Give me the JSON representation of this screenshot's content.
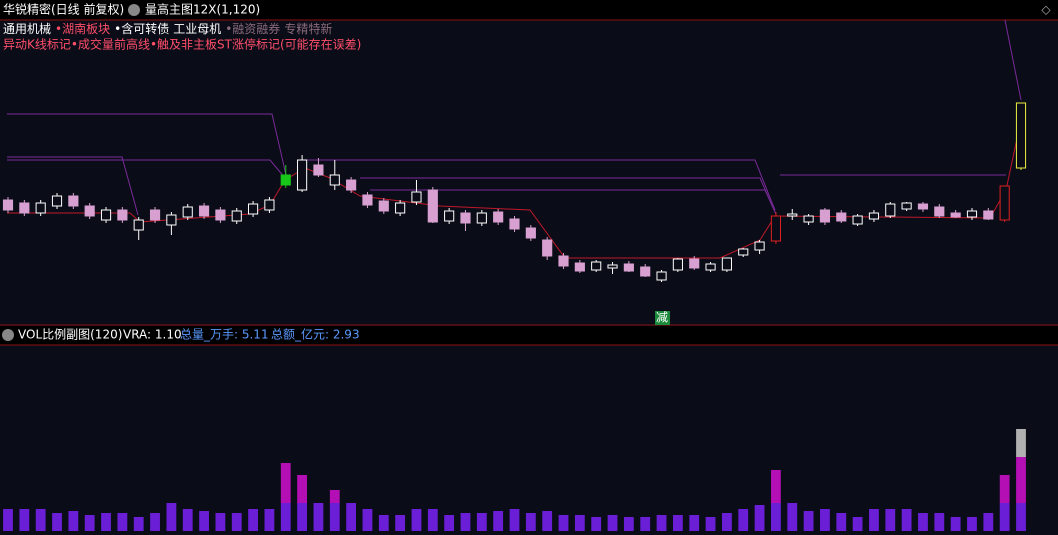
{
  "header": {
    "title": "华锐精密(日线 前复权)",
    "indicator": "量高主图12X(1,120)"
  },
  "legend_line": [
    {
      "text": "通用机械",
      "color": "#ffffff"
    },
    {
      "text": "•湖南板块",
      "color": "#ff4d6a"
    },
    {
      "text": "•含可转债",
      "color": "#ffffff"
    },
    {
      "text": "工业母机",
      "color": "#ffffff"
    },
    {
      "text": "•融资融券",
      "color": "#8a6a7a"
    },
    {
      "text": "专精特新",
      "color": "#8a6a7a"
    }
  ],
  "notes_line": "异动K线标记•成交量前高线•触及非主板ST涨停标记(可能存在误差)",
  "marker": "减",
  "volume_header": {
    "title": "VOL比例副图(120)",
    "vra": "VRA: 1.10",
    "total_volume": "总量_万手: 5.11",
    "total_amount": "总额_亿元: 2.93"
  },
  "chart_data": [
    {
      "type": "candlestick",
      "ylim": [
        10,
        300
      ],
      "up_color": "#ffffff",
      "down_color": "#d8a0d0",
      "candle_colors": [
        null,
        null,
        null,
        null,
        null,
        null,
        null,
        null,
        null,
        null,
        null,
        null,
        null,
        null,
        null,
        null,
        null,
        "#18c818",
        null,
        null,
        null,
        null,
        null,
        null,
        null,
        null,
        null,
        null,
        null,
        null,
        null,
        null,
        null,
        null,
        null,
        null,
        null,
        null,
        null,
        null,
        null,
        null,
        null,
        null,
        null,
        null,
        null,
        "#e02020",
        null,
        null,
        null,
        null,
        null,
        null,
        null,
        null,
        null,
        null,
        null,
        null,
        null,
        "#e02020",
        "#f0f040"
      ],
      "ohlc": [
        [
          120,
          123,
          107,
          110
        ],
        [
          117,
          120,
          104,
          107
        ],
        [
          107,
          120,
          104,
          117
        ],
        [
          114,
          127,
          111,
          124
        ],
        [
          124,
          127,
          111,
          114
        ],
        [
          114,
          117,
          101,
          104
        ],
        [
          100,
          113,
          97,
          110
        ],
        [
          110,
          113,
          97,
          100
        ],
        [
          90,
          103,
          80,
          100
        ],
        [
          110,
          113,
          97,
          100
        ],
        [
          95,
          108,
          85,
          105
        ],
        [
          103,
          116,
          100,
          113
        ],
        [
          114,
          117,
          101,
          104
        ],
        [
          110,
          113,
          97,
          100
        ],
        [
          99,
          112,
          96,
          109
        ],
        [
          106,
          119,
          103,
          116
        ],
        [
          110,
          123,
          107,
          120
        ],
        [
          135,
          155,
          132,
          145
        ],
        [
          130,
          165,
          128,
          160
        ],
        [
          155,
          162,
          143,
          145
        ],
        [
          135,
          160,
          130,
          145
        ],
        [
          140,
          143,
          127,
          130
        ],
        [
          125,
          128,
          112,
          115
        ],
        [
          119,
          122,
          106,
          109
        ],
        [
          107,
          120,
          104,
          117
        ],
        [
          118,
          140,
          115,
          128
        ],
        [
          130,
          133,
          97,
          98
        ],
        [
          99,
          112,
          96,
          109
        ],
        [
          107,
          110,
          89,
          97
        ],
        [
          97,
          110,
          94,
          107
        ],
        [
          108,
          111,
          95,
          98
        ],
        [
          101,
          104,
          88,
          91
        ],
        [
          92,
          95,
          79,
          82
        ],
        [
          80,
          83,
          60,
          64
        ],
        [
          64,
          67,
          51,
          54
        ],
        [
          57,
          60,
          47,
          49
        ],
        [
          50,
          60,
          48,
          58
        ],
        [
          52,
          58,
          46,
          55
        ],
        [
          56,
          59,
          48,
          49
        ],
        [
          53,
          56,
          43,
          44
        ],
        [
          40,
          50,
          38,
          48
        ],
        [
          50,
          62,
          48,
          61
        ],
        [
          61,
          64,
          50,
          52
        ],
        [
          50,
          58,
          48,
          56
        ],
        [
          50,
          62,
          48,
          62
        ],
        [
          65,
          72,
          63,
          71
        ],
        [
          70,
          80,
          66,
          78
        ],
        [
          79,
          108,
          76,
          104
        ],
        [
          104,
          111,
          100,
          106
        ],
        [
          98,
          106,
          95,
          104
        ],
        [
          110,
          112,
          95,
          98
        ],
        [
          107,
          110,
          97,
          99
        ],
        [
          96,
          106,
          94,
          104
        ],
        [
          101,
          110,
          98,
          107
        ],
        [
          104,
          118,
          102,
          116
        ],
        [
          111,
          118,
          109,
          117
        ],
        [
          116,
          118,
          108,
          111
        ],
        [
          113,
          116,
          102,
          104
        ],
        [
          107,
          110,
          102,
          103
        ],
        [
          103,
          112,
          100,
          109
        ],
        [
          109,
          112,
          100,
          101
        ],
        [
          100,
          134,
          98,
          134
        ],
        [
          152,
          217,
          150,
          217
        ]
      ]
    },
    {
      "type": "stacked_bar",
      "ylim": [
        0,
        186
      ],
      "series": [
        {
          "color": "#6a1fd6",
          "values": [
            22,
            22,
            22,
            18,
            20,
            16,
            18,
            18,
            14,
            18,
            28,
            22,
            20,
            18,
            18,
            22,
            22,
            28,
            28,
            28,
            28,
            28,
            22,
            16,
            16,
            22,
            22,
            16,
            18,
            18,
            20,
            22,
            18,
            20,
            16,
            16,
            14,
            16,
            14,
            14,
            16,
            16,
            16,
            14,
            18,
            22,
            26,
            28,
            28,
            20,
            22,
            18,
            14,
            22,
            22,
            22,
            18,
            18,
            14,
            14,
            18,
            28,
            28
          ]
        },
        {
          "color": "#b40fb4",
          "values": [
            0,
            0,
            0,
            0,
            0,
            0,
            0,
            0,
            0,
            0,
            0,
            0,
            0,
            0,
            0,
            0,
            0,
            40,
            28,
            0,
            13,
            0,
            0,
            0,
            0,
            0,
            0,
            0,
            0,
            0,
            0,
            0,
            0,
            0,
            0,
            0,
            0,
            0,
            0,
            0,
            0,
            0,
            0,
            0,
            0,
            0,
            0,
            33,
            0,
            0,
            0,
            0,
            0,
            0,
            0,
            0,
            0,
            0,
            0,
            0,
            0,
            28,
            46
          ]
        },
        {
          "color": "#b0b0b0",
          "values": [
            0,
            0,
            0,
            0,
            0,
            0,
            0,
            0,
            0,
            0,
            0,
            0,
            0,
            0,
            0,
            0,
            0,
            0,
            0,
            0,
            0,
            0,
            0,
            0,
            0,
            0,
            0,
            0,
            0,
            0,
            0,
            0,
            0,
            0,
            0,
            0,
            0,
            0,
            0,
            0,
            0,
            0,
            0,
            0,
            0,
            0,
            0,
            0,
            0,
            0,
            0,
            0,
            0,
            0,
            0,
            0,
            0,
            0,
            0,
            0,
            0,
            0,
            28
          ]
        }
      ]
    }
  ]
}
